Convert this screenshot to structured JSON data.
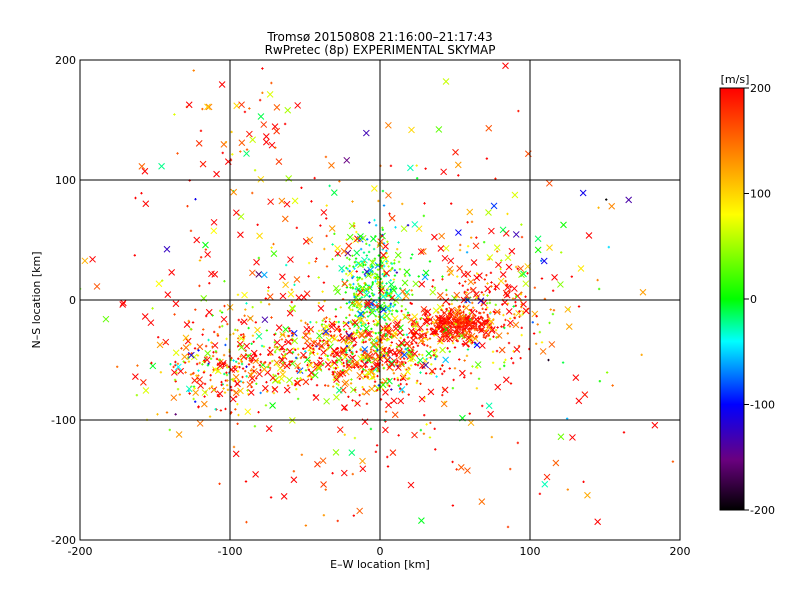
{
  "chart_data": {
    "type": "scatter",
    "title": "Tromsø 20150808 21:16:00–21:17:43",
    "subtitle": "RwPretec (8p) EXPERIMENTAL SKYMAP",
    "xlabel": "E–W location [km]",
    "ylabel": "N–S location [km]",
    "xlim": [
      -200,
      200
    ],
    "ylim": [
      -200,
      200
    ],
    "xticks": [
      -200,
      -100,
      0,
      100,
      200
    ],
    "yticks": [
      -200,
      -100,
      0,
      100,
      200
    ],
    "grid": true,
    "colorbar": {
      "label": "[m/s]",
      "min": -200,
      "max": 200,
      "ticks": [
        200,
        100,
        0,
        -100,
        -200
      ],
      "colormap": [
        "#000000",
        "#6a0080",
        "#0000ff",
        "#00ffff",
        "#00ff00",
        "#ffff00",
        "#ff8000",
        "#ff0000"
      ]
    },
    "markers": {
      "cross": "x",
      "dot": "+"
    },
    "clusters": [
      {
        "cx": 50,
        "cy": -20,
        "sx": 12,
        "sy": 6,
        "n": 300,
        "vmean": 190,
        "vsd": 15,
        "cross_frac": 0.25
      },
      {
        "cx": -10,
        "cy": -45,
        "sx": 35,
        "sy": 18,
        "n": 700,
        "vmean": 150,
        "vsd": 110,
        "cross_frac": 0.3
      },
      {
        "cx": -5,
        "cy": 10,
        "sx": 12,
        "sy": 25,
        "n": 350,
        "vmean": 10,
        "vsd": 50,
        "cross_frac": 0.15
      },
      {
        "cx": -100,
        "cy": -55,
        "sx": 25,
        "sy": 20,
        "n": 300,
        "vmean": 140,
        "vsd": 100,
        "cross_frac": 0.2
      },
      {
        "cx": 70,
        "cy": -10,
        "sx": 25,
        "sy": 20,
        "n": 200,
        "vmean": 160,
        "vsd": 80,
        "cross_frac": 0.2
      },
      {
        "cx": 0,
        "cy": 0,
        "sx": 90,
        "sy": 70,
        "n": 500,
        "vmean": 140,
        "vsd": 120,
        "cross_frac": 0.55
      },
      {
        "cx": -95,
        "cy": 140,
        "sx": 20,
        "sy": 20,
        "n": 40,
        "vmean": 170,
        "vsd": 60,
        "cross_frac": 0.6
      },
      {
        "cx": 0,
        "cy": -150,
        "sx": 70,
        "sy": 25,
        "n": 40,
        "vmean": 190,
        "vsd": 30,
        "cross_frac": 0.5
      }
    ]
  }
}
